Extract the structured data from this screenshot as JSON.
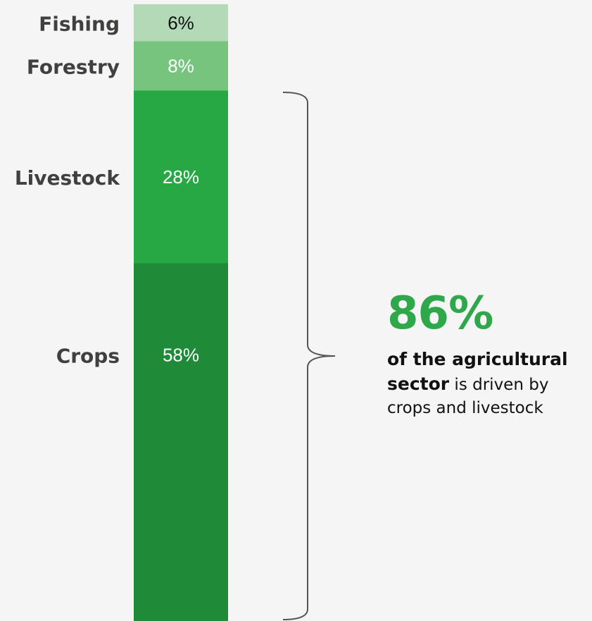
{
  "chart_data": {
    "type": "bar",
    "stacked": true,
    "orientation": "vertical",
    "categories": [
      "Fishing",
      "Forestry",
      "Livestock",
      "Crops"
    ],
    "values": [
      6,
      8,
      28,
      58
    ],
    "value_labels": [
      "6%",
      "8%",
      "28%",
      "58%"
    ],
    "colors": [
      "#b3d9b6",
      "#77c47f",
      "#28a745",
      "#1f8a38"
    ],
    "label_colors": [
      "#111111",
      "#ffffff",
      "#ffffff",
      "#ffffff"
    ]
  },
  "callout": {
    "big_number": "86%",
    "bold_text_1": "of the agricultural",
    "bold_text_2": "sector",
    "plain_text": " is driven by crops and livestock",
    "accent_color": "#2ea84a"
  },
  "bracket_color": "#555555"
}
